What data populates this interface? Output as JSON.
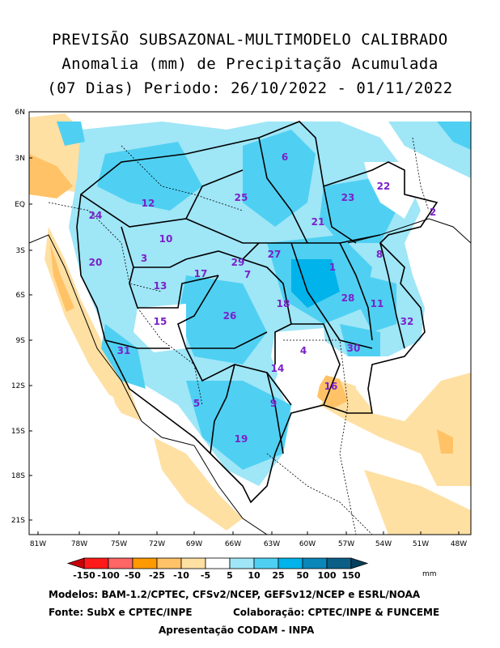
{
  "title": {
    "line1": "PREVISÃO SUBSAZONAL-MULTIMODELO CALIBRADO",
    "line2": "Anomalia (mm) de Precipitação Acumulada",
    "line3": "(07 Dias) Periodo: 26/10/2022 - 01/11/2022"
  },
  "axes": {
    "lat_labels": [
      "6N",
      "3N",
      "EQ",
      "3S",
      "6S",
      "9S",
      "12S",
      "15S",
      "18S",
      "21S"
    ],
    "lon_labels": [
      "81W",
      "78W",
      "75W",
      "72W",
      "69W",
      "66W",
      "63W",
      "60W",
      "57W",
      "54W",
      "51W",
      "48W"
    ]
  },
  "regions": [
    "1",
    "2",
    "3",
    "4",
    "5",
    "6",
    "7",
    "8",
    "9",
    "10",
    "11",
    "12",
    "13",
    "14",
    "15",
    "16",
    "17",
    "18",
    "19",
    "20",
    "21",
    "22",
    "23",
    "24",
    "25",
    "26",
    "27",
    "28",
    "29",
    "30",
    "31",
    "32"
  ],
  "legend": {
    "labels": [
      "-150",
      "-100",
      "-50",
      "-25",
      "-10",
      "-5",
      "5",
      "10",
      "25",
      "50",
      "100",
      "150"
    ],
    "unit": "mm",
    "colors": [
      "#c8000a",
      "#ff1a1a",
      "#ff6666",
      "#ff9900",
      "#ffc266",
      "#ffe0a3",
      "#ffffff",
      "#9fe6f7",
      "#4fd0f2",
      "#00b3ea",
      "#0b86b8",
      "#0a5f86",
      "#06405c"
    ]
  },
  "credits": {
    "models": "Modelos: BAM-1.2/CPTEC, CFSv2/NCEP, GEFSv12/NCEP e ESRL/NOAA",
    "source": "Fonte: SubX e CPTEC/INPE",
    "collab": "Colaboração: CPTEC/INPE & FUNCEME",
    "presentation": "Apresentação CODAM - INPA"
  }
}
